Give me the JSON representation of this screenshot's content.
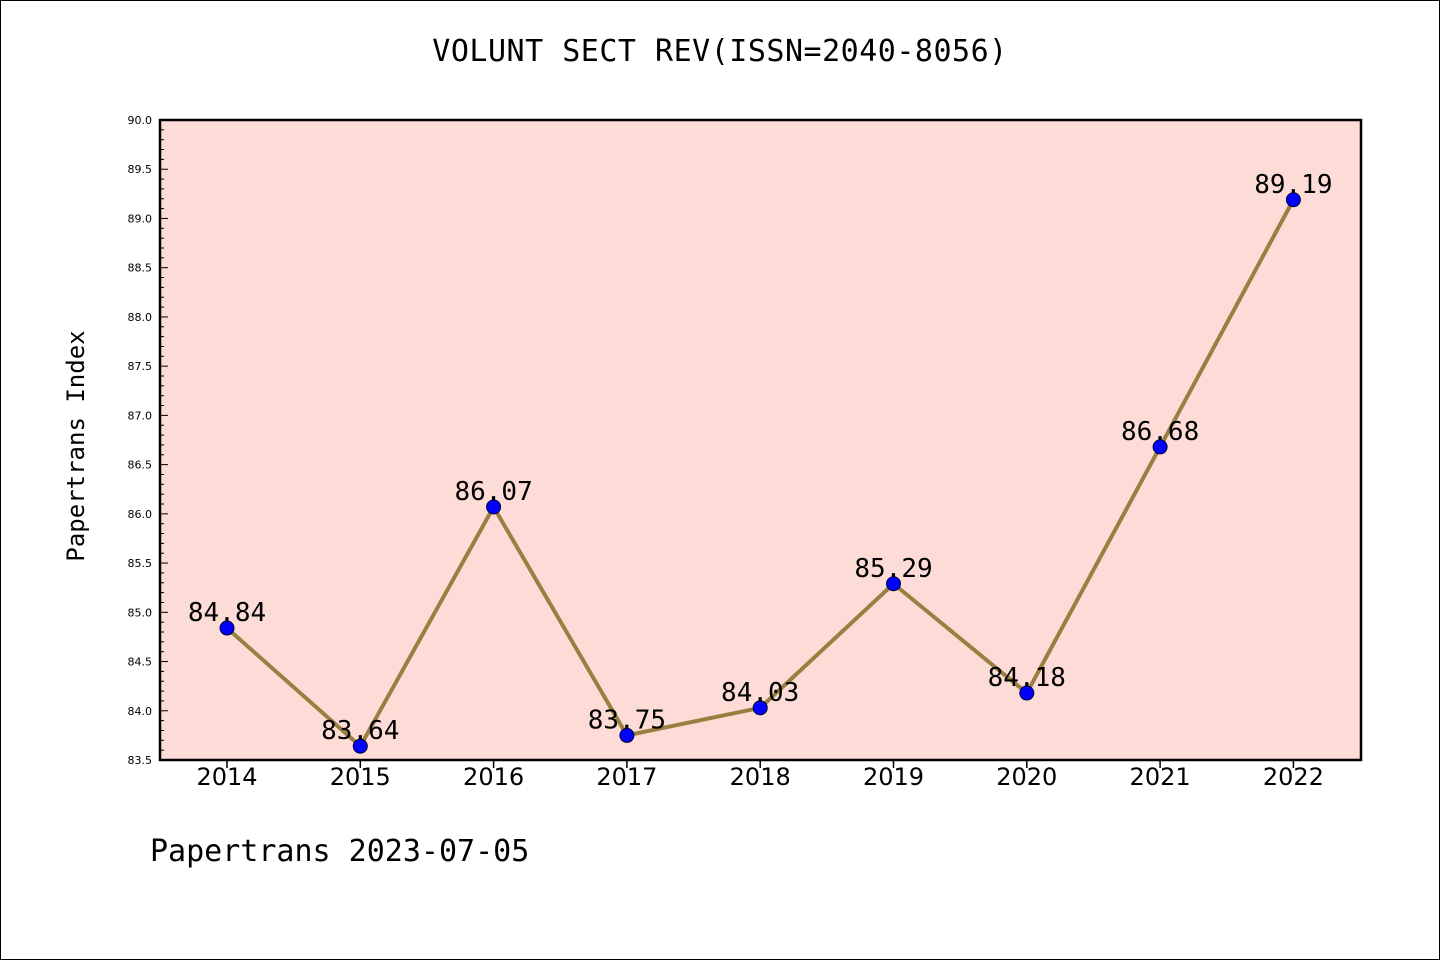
{
  "title": "VOLUNT SECT REV(ISSN=2040-8056)",
  "footer": "Papertrans 2023-07-05",
  "colors": {
    "plot_background": "#fddcd8",
    "line": "#9a8040",
    "marker": "#0000ff"
  },
  "chart_data": {
    "type": "line",
    "title": "VOLUNT SECT REV(ISSN=2040-8056)",
    "xlabel": "",
    "ylabel": "Papertrans Index",
    "categories": [
      "2014",
      "2015",
      "2016",
      "2017",
      "2018",
      "2019",
      "2020",
      "2021",
      "2022"
    ],
    "series": [
      {
        "values": [
          84.84,
          83.64,
          86.07,
          83.75,
          84.03,
          85.29,
          84.18,
          86.68,
          89.19
        ],
        "labels": [
          "84.84",
          "83.64",
          "86.07",
          "83.75",
          "84.03",
          "85.29",
          "84.18",
          "86.68",
          "89.19"
        ]
      }
    ],
    "ylim": [
      83.5,
      90.0
    ],
    "yticks": [
      "83.5",
      "84.0",
      "84.5",
      "85.0",
      "85.5",
      "86.0",
      "86.5",
      "87.0",
      "87.5",
      "88.0",
      "88.5",
      "89.0",
      "89.5",
      "90.0"
    ],
    "grid": false,
    "legend": "none"
  }
}
